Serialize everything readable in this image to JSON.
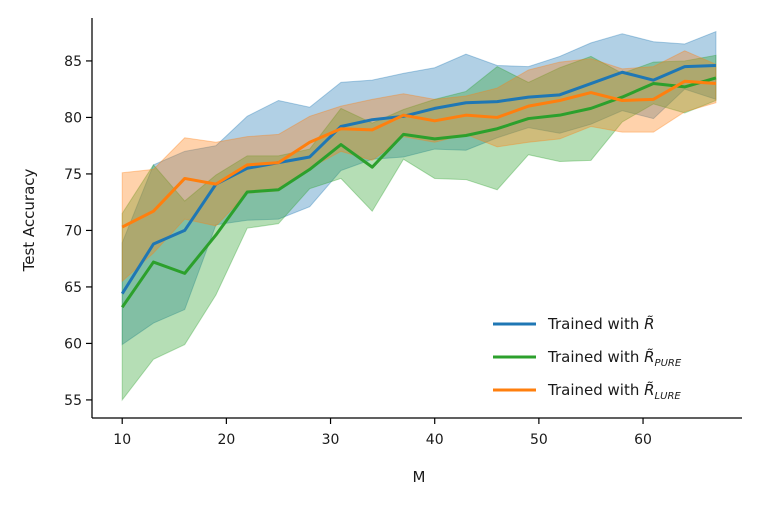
{
  "chart_data": {
    "type": "line",
    "xlabel": "M",
    "ylabel": "Test Accuracy",
    "xlim": [
      7.1,
      69.5
    ],
    "ylim": [
      53.4,
      88.8
    ],
    "xticks": [
      10,
      20,
      30,
      40,
      50,
      60
    ],
    "yticks": [
      55,
      60,
      65,
      70,
      75,
      80,
      85
    ],
    "legend_position": "lower-right",
    "x": [
      10,
      13,
      16,
      19,
      22,
      25,
      28,
      31,
      34,
      37,
      40,
      43,
      46,
      49,
      52,
      55,
      58,
      61,
      64,
      67
    ],
    "series": [
      {
        "name": "Trained with R̃",
        "legend_base": "Trained with ",
        "legend_var": "R̃",
        "legend_sub": "",
        "color": "#1f77b4",
        "values": [
          64.4,
          68.8,
          70.0,
          74.1,
          75.5,
          76.0,
          76.5,
          79.2,
          79.8,
          80.1,
          80.8,
          81.3,
          81.4,
          81.8,
          82.0,
          83.0,
          84.0,
          83.3,
          84.5,
          84.6
        ],
        "upper": [
          68.9,
          75.8,
          77.0,
          77.5,
          80.1,
          81.5,
          80.9,
          83.1,
          83.3,
          83.9,
          84.4,
          85.6,
          84.6,
          84.5,
          85.4,
          86.6,
          87.4,
          86.7,
          86.5,
          87.6
        ],
        "lower": [
          59.9,
          61.8,
          63.0,
          70.5,
          70.9,
          71.0,
          72.1,
          75.3,
          76.3,
          76.5,
          77.2,
          77.1,
          78.2,
          79.1,
          78.6,
          79.4,
          80.6,
          79.9,
          82.5,
          81.6
        ]
      },
      {
        "name": "Trained with R̃PURE",
        "legend_base": "Trained with ",
        "legend_var": "R̃",
        "legend_sub": "PURE",
        "color": "#2ca02c",
        "values": [
          63.2,
          67.2,
          66.2,
          69.6,
          73.4,
          73.6,
          75.4,
          77.6,
          75.6,
          78.5,
          78.1,
          78.4,
          79.0,
          79.9,
          80.2,
          80.8,
          81.8,
          83.0,
          82.7,
          83.5
        ],
        "upper": [
          71.5,
          75.8,
          72.6,
          74.9,
          76.6,
          76.6,
          77.2,
          80.8,
          79.5,
          80.7,
          81.6,
          82.3,
          84.5,
          83.1,
          84.4,
          85.4,
          83.9,
          84.9,
          85.0,
          85.5
        ],
        "lower": [
          55.0,
          58.6,
          59.9,
          64.3,
          70.2,
          70.6,
          73.7,
          74.6,
          71.7,
          76.3,
          74.6,
          74.5,
          73.6,
          76.7,
          76.1,
          76.2,
          79.6,
          81.2,
          80.4,
          81.5
        ]
      },
      {
        "name": "Trained with R̃LURE",
        "legend_base": "Trained with ",
        "legend_var": "R̃",
        "legend_sub": "LURE",
        "color": "#ff7f0e",
        "values": [
          70.3,
          71.7,
          74.6,
          74.1,
          75.8,
          76.0,
          77.8,
          79.0,
          78.9,
          80.2,
          79.7,
          80.2,
          80.0,
          81.0,
          81.5,
          82.2,
          81.5,
          81.6,
          83.2,
          83.0
        ],
        "upper": [
          75.1,
          75.4,
          78.2,
          77.8,
          78.3,
          78.5,
          80.1,
          81.0,
          81.6,
          82.1,
          81.6,
          81.9,
          82.6,
          84.2,
          84.9,
          85.2,
          84.3,
          84.5,
          85.9,
          84.7
        ],
        "lower": [
          65.5,
          68.0,
          71.0,
          70.4,
          73.3,
          73.5,
          75.5,
          77.0,
          76.2,
          78.3,
          77.8,
          78.5,
          77.4,
          77.8,
          78.1,
          79.2,
          78.7,
          78.7,
          80.5,
          81.3
        ]
      }
    ]
  }
}
